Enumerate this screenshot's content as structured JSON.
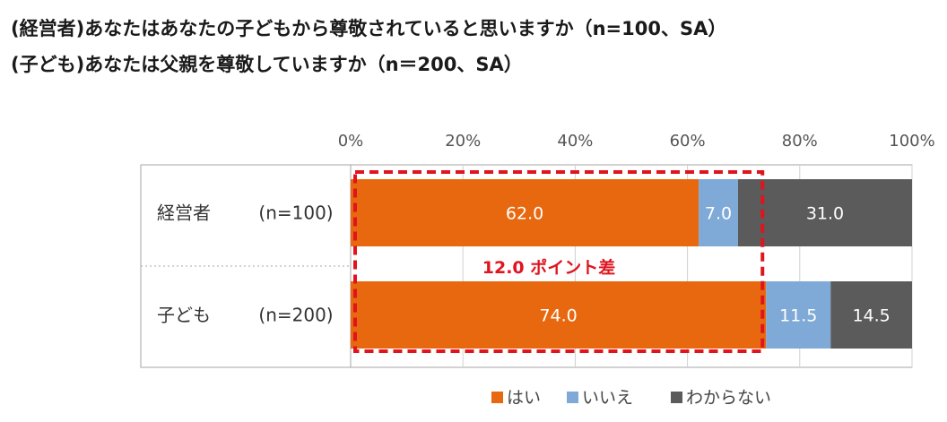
{
  "titles": [
    "(経営者)あなたはあなたの子どもから尊敬されていると思いますか（n=100、SA）",
    "(子ども)あなたは父親を尊敬していますか（n＝200、SA）"
  ],
  "chart_data": {
    "type": "bar",
    "orientation": "horizontal",
    "stacked": true,
    "categories": [
      "経営者",
      "子ども"
    ],
    "category_sample_sizes": [
      "(n=100)",
      "(n=200)"
    ],
    "series": [
      {
        "name": "はい",
        "values": [
          62.0,
          74.0
        ],
        "labels": [
          "62.0",
          "74.0"
        ],
        "color": "#e8680f"
      },
      {
        "name": "いいえ",
        "values": [
          7.0,
          11.5
        ],
        "labels": [
          "7.0",
          "11.5"
        ],
        "color": "#7fa9d6"
      },
      {
        "name": "わからない",
        "values": [
          31.0,
          14.5
        ],
        "labels": [
          "31.0",
          "14.5"
        ],
        "color": "#5b5b5b"
      }
    ],
    "x_ticks": [
      "0%",
      "20%",
      "40%",
      "60%",
      "80%",
      "100%"
    ],
    "xlim": [
      0,
      100
    ],
    "grid": true,
    "legend_position": "bottom",
    "annotation": {
      "text": "12.0 ポイント差",
      "color": "#e0141e"
    }
  }
}
